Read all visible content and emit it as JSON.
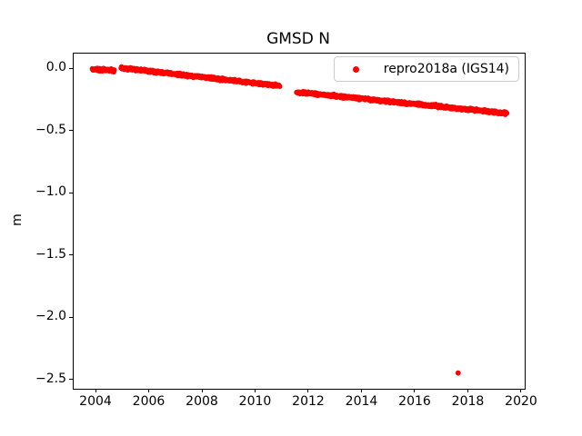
{
  "title": "GMSD N",
  "legend": {
    "label": "repro2018a (IGS14)",
    "marker_color": "#ff0000",
    "position": "upper right"
  },
  "chart_data": {
    "type": "scatter",
    "title": "GMSD N",
    "xlabel": "",
    "ylabel": "m",
    "xlim": [
      2003.145,
      2020.103
    ],
    "ylim": [
      -2.567,
      0.127
    ],
    "grid": false,
    "legend_position": "upper right",
    "x_ticks": {
      "values": [
        2004,
        2006,
        2008,
        2010,
        2012,
        2014,
        2016,
        2018,
        2020
      ],
      "labels": [
        "2004",
        "2006",
        "2008",
        "2010",
        "2012",
        "2014",
        "2016",
        "2018",
        "2020"
      ]
    },
    "y_ticks": {
      "values": [
        0.0,
        -0.5,
        -1.0,
        -1.5,
        -2.0,
        -2.5
      ],
      "labels": [
        "0.0",
        "−0.5",
        "−1.0",
        "−1.5",
        "−2.0",
        "−2.5"
      ]
    },
    "series": [
      {
        "name": "repro2018a (IGS14)",
        "color": "#ff0000",
        "marker": "dot",
        "trend_segments": [
          {
            "x_start": 2003.84,
            "x_end": 2004.68,
            "y_start": 0.002,
            "y_end": -0.008,
            "points": 150
          },
          {
            "x_start": 2004.92,
            "x_end": 2010.9,
            "y_start": 0.012,
            "y_end": -0.133,
            "points": 780
          },
          {
            "x_start": 2011.52,
            "x_end": 2019.44,
            "y_start": -0.182,
            "y_end": -0.352,
            "points": 1000
          }
        ],
        "outlier_points": [
          {
            "x": 2017.6,
            "y": -2.44
          }
        ]
      }
    ]
  },
  "colors": {
    "series_red": "#ff0000",
    "spine": "#000000",
    "text": "#000000",
    "legend_border": "#cccccc",
    "background": "#ffffff"
  }
}
